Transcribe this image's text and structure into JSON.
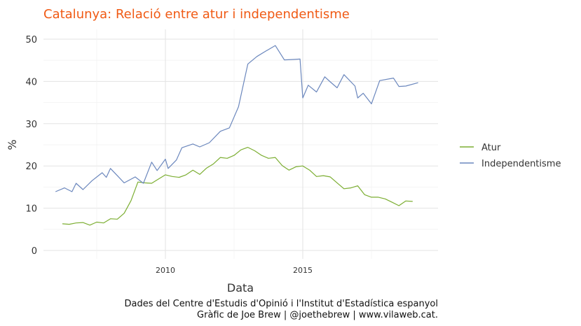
{
  "chart_data": {
    "type": "line",
    "title": "Catalunya: Relació entre atur i independentisme",
    "xlabel": "Data",
    "ylabel": "%",
    "xlim": [
      2006.0,
      2020.0
    ],
    "ylim": [
      -2,
      52
    ],
    "x_ticks": [
      "2010",
      "2015"
    ],
    "y_ticks": [
      "0",
      "10",
      "20",
      "30",
      "40",
      "50"
    ],
    "grid": true,
    "legend_position": "right",
    "caption_lines": [
      "Dades del Centre d'Estudis d'Opinió i l'Institut d'Estadística espanyol",
      "Gràfic de Joe Brew | @joethebrew | www.vilaweb.cat."
    ],
    "series": [
      {
        "name": "Atur",
        "color": "#7cae32",
        "points": [
          [
            2006.25,
            6.3
          ],
          [
            2006.5,
            6.2
          ],
          [
            2006.75,
            6.5
          ],
          [
            2007.0,
            6.6
          ],
          [
            2007.25,
            6.0
          ],
          [
            2007.5,
            6.7
          ],
          [
            2007.75,
            6.5
          ],
          [
            2008.0,
            7.5
          ],
          [
            2008.25,
            7.4
          ],
          [
            2008.5,
            8.8
          ],
          [
            2008.75,
            11.8
          ],
          [
            2009.0,
            16.2
          ],
          [
            2009.25,
            16.0
          ],
          [
            2009.5,
            15.9
          ],
          [
            2009.75,
            16.9
          ],
          [
            2010.0,
            17.9
          ],
          [
            2010.25,
            17.5
          ],
          [
            2010.5,
            17.3
          ],
          [
            2010.75,
            17.9
          ],
          [
            2011.0,
            19.0
          ],
          [
            2011.25,
            18.0
          ],
          [
            2011.5,
            19.5
          ],
          [
            2011.75,
            20.5
          ],
          [
            2012.0,
            22.0
          ],
          [
            2012.25,
            21.8
          ],
          [
            2012.5,
            22.5
          ],
          [
            2012.75,
            23.8
          ],
          [
            2013.0,
            24.4
          ],
          [
            2013.25,
            23.6
          ],
          [
            2013.5,
            22.5
          ],
          [
            2013.75,
            21.8
          ],
          [
            2014.0,
            22.0
          ],
          [
            2014.25,
            20.1
          ],
          [
            2014.5,
            19.0
          ],
          [
            2014.75,
            19.8
          ],
          [
            2015.0,
            20.0
          ],
          [
            2015.25,
            19.0
          ],
          [
            2015.5,
            17.5
          ],
          [
            2015.75,
            17.7
          ],
          [
            2016.0,
            17.4
          ],
          [
            2016.25,
            16.0
          ],
          [
            2016.5,
            14.6
          ],
          [
            2016.75,
            14.8
          ],
          [
            2017.0,
            15.3
          ],
          [
            2017.25,
            13.2
          ],
          [
            2017.5,
            12.6
          ],
          [
            2017.75,
            12.6
          ],
          [
            2018.0,
            12.2
          ],
          [
            2018.25,
            11.4
          ],
          [
            2018.5,
            10.6
          ],
          [
            2018.75,
            11.7
          ],
          [
            2019.0,
            11.6
          ]
        ]
      },
      {
        "name": "Independentisme",
        "color": "#6b87bd",
        "points": [
          [
            2006.0,
            13.9
          ],
          [
            2006.33,
            14.8
          ],
          [
            2006.6,
            13.9
          ],
          [
            2006.75,
            15.9
          ],
          [
            2007.0,
            14.4
          ],
          [
            2007.33,
            16.5
          ],
          [
            2007.7,
            18.4
          ],
          [
            2007.85,
            17.3
          ],
          [
            2008.0,
            19.4
          ],
          [
            2008.25,
            17.7
          ],
          [
            2008.5,
            16.0
          ],
          [
            2008.9,
            17.4
          ],
          [
            2009.2,
            15.9
          ],
          [
            2009.5,
            20.9
          ],
          [
            2009.7,
            18.9
          ],
          [
            2010.0,
            21.6
          ],
          [
            2010.1,
            19.4
          ],
          [
            2010.4,
            21.4
          ],
          [
            2010.6,
            24.3
          ],
          [
            2011.0,
            25.2
          ],
          [
            2011.25,
            24.5
          ],
          [
            2011.6,
            25.5
          ],
          [
            2012.0,
            28.2
          ],
          [
            2012.33,
            29.0
          ],
          [
            2012.66,
            34.0
          ],
          [
            2013.0,
            44.1
          ],
          [
            2013.33,
            45.9
          ],
          [
            2013.66,
            47.2
          ],
          [
            2014.0,
            48.5
          ],
          [
            2014.33,
            45.1
          ],
          [
            2014.66,
            45.2
          ],
          [
            2014.9,
            45.3
          ],
          [
            2015.0,
            36.1
          ],
          [
            2015.2,
            39.1
          ],
          [
            2015.5,
            37.5
          ],
          [
            2015.8,
            41.1
          ],
          [
            2016.0,
            39.9
          ],
          [
            2016.25,
            38.5
          ],
          [
            2016.5,
            41.6
          ],
          [
            2016.9,
            38.9
          ],
          [
            2017.0,
            36.1
          ],
          [
            2017.2,
            37.2
          ],
          [
            2017.5,
            34.7
          ],
          [
            2017.8,
            40.2
          ],
          [
            2018.3,
            40.8
          ],
          [
            2018.5,
            38.8
          ],
          [
            2018.75,
            38.9
          ],
          [
            2019.2,
            39.7
          ]
        ]
      }
    ]
  }
}
